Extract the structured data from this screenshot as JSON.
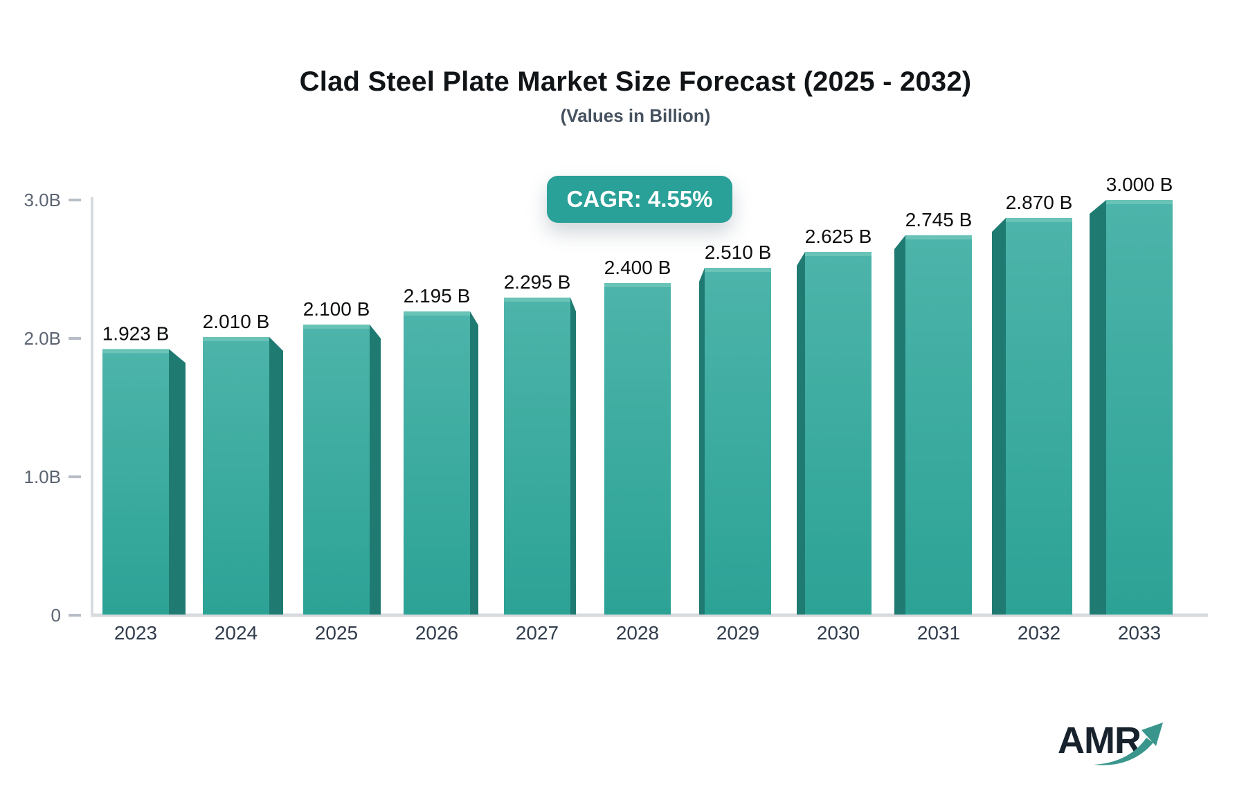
{
  "header": {
    "title": "Clad Steel Plate Market Size Forecast (2025 - 2032)",
    "subtitle": "(Values in Billion)"
  },
  "cagr_badge": {
    "label": "CAGR: 4.55%",
    "bg_color": "#2aa198",
    "text_color": "#ffffff"
  },
  "chart_data": {
    "type": "bar",
    "title": "Clad Steel Plate Market Size Forecast (2025 - 2032)",
    "subtitle": "(Values in Billion)",
    "annotation": "CAGR: 4.55%",
    "categories": [
      "2023",
      "2024",
      "2025",
      "2026",
      "2027",
      "2028",
      "2029",
      "2030",
      "2031",
      "2032",
      "2033"
    ],
    "values": [
      1.923,
      2.01,
      2.1,
      2.195,
      2.295,
      2.4,
      2.51,
      2.625,
      2.745,
      2.87,
      3.0
    ],
    "value_labels": [
      "1.923 B",
      "2.010 B",
      "2.100 B",
      "2.195 B",
      "2.295 B",
      "2.400 B",
      "2.510 B",
      "2.625 B",
      "2.745 B",
      "2.870 B",
      "3.000 B"
    ],
    "xlabel": "",
    "ylabel": "",
    "ylim": [
      0,
      3
    ],
    "yticks": [
      {
        "value": 0,
        "label": "0"
      },
      {
        "value": 1,
        "label": "1.0B"
      },
      {
        "value": 2,
        "label": "2.0B"
      },
      {
        "value": 3,
        "label": "3.0B"
      }
    ],
    "grid": false,
    "legend": false,
    "colors": {
      "face_top": "#4db4aa",
      "face_bottom": "#2ca295",
      "face_highlight": "#6ac3b7",
      "side": "#1f7b72",
      "axis": "#d7dade",
      "tick": "#b7bdc6",
      "tick_label": "#5b6472",
      "year_label": "#323d4d",
      "value_label": "#0c0e10"
    }
  },
  "logo": {
    "text": "AMR",
    "text_color": "#17222c",
    "arrow_color": "#3a968c"
  }
}
